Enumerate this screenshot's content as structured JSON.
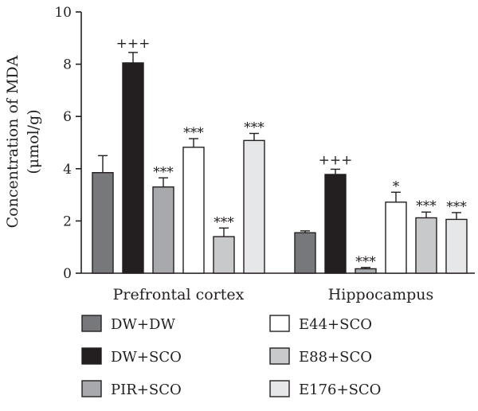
{
  "chart_data": {
    "type": "bar",
    "title": "",
    "xlabel": "",
    "ylabel": "Concentration of MDA",
    "ylabel_unit": "(μmol/g)",
    "ylim": [
      0,
      10
    ],
    "yticks": [
      "0",
      "2",
      "4",
      "6",
      "8",
      "10"
    ],
    "categories": [
      "Prefrontal cortex",
      "Hippocampus"
    ],
    "series": [
      {
        "name": "DW+DW",
        "color": "#77787b",
        "values": [
          3.85,
          1.55
        ],
        "errors": [
          0.65,
          0.07
        ],
        "annotations": [
          "",
          ""
        ]
      },
      {
        "name": "DW+SCO",
        "color": "#231f20",
        "values": [
          8.05,
          3.78
        ],
        "errors": [
          0.4,
          0.2
        ],
        "annotations": [
          "+++",
          "+++"
        ]
      },
      {
        "name": "PIR+SCO",
        "color": "#a7a9ac",
        "values": [
          3.3,
          0.17
        ],
        "errors": [
          0.35,
          0.05
        ],
        "annotations": [
          "***",
          "***"
        ]
      },
      {
        "name": "E44+SCO",
        "color": "#ffffff",
        "values": [
          4.82,
          2.72
        ],
        "errors": [
          0.33,
          0.38
        ],
        "annotations": [
          "***",
          "*"
        ]
      },
      {
        "name": "E88+SCO",
        "color": "#c8c9cb",
        "values": [
          1.4,
          2.12
        ],
        "errors": [
          0.33,
          0.22
        ],
        "annotations": [
          "***",
          "***"
        ]
      },
      {
        "name": "E176+SCO",
        "color": "#e6e7e8",
        "values": [
          5.08,
          2.06
        ],
        "errors": [
          0.27,
          0.26
        ],
        "annotations": [
          "***",
          "***"
        ]
      }
    ],
    "grid": false,
    "legend_position": "bottom"
  }
}
